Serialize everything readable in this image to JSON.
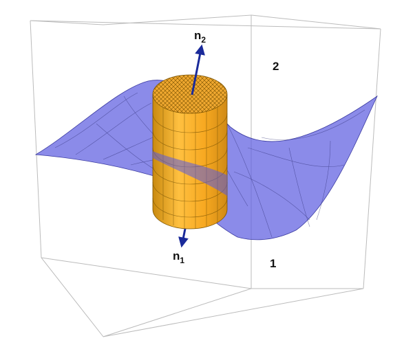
{
  "labels": {
    "normal_top": {
      "base": "n",
      "sub": "2"
    },
    "normal_bottom": {
      "base": "n",
      "sub": "1"
    },
    "region_top": "2",
    "region_bottom": "1"
  }
}
